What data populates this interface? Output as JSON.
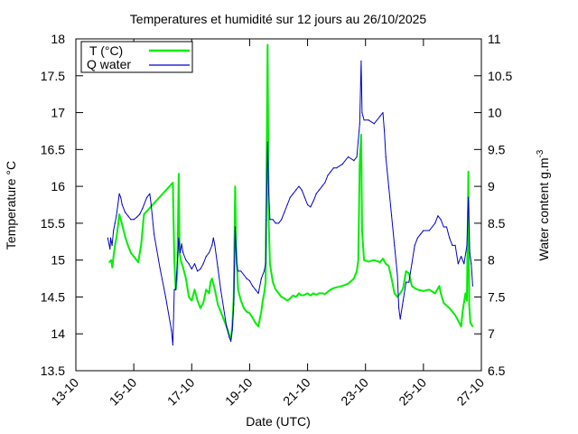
{
  "chart_data": {
    "type": "line",
    "title": "Temperatures et humidité sur 12 jours au 26/10/2025",
    "xlabel": "Date (UTC)",
    "ylabel_left": "Temperature °C",
    "ylabel_right": "Water content g.m",
    "ylabel_right_sup": "-3",
    "x_start_day": 13,
    "x_range_days": [
      0,
      14
    ],
    "x_ticks": [
      "13-10",
      "15-10",
      "17-10",
      "19-10",
      "21-10",
      "23-10",
      "25-10",
      "27-10"
    ],
    "x_tick_days": [
      0,
      2,
      4,
      6,
      8,
      10,
      12,
      14
    ],
    "ylim_left": [
      13.5,
      18
    ],
    "yticks_left": [
      "13.5",
      "14",
      "14.5",
      "15",
      "15.5",
      "16",
      "16.5",
      "17",
      "17.5",
      "18"
    ],
    "ylim_right": [
      6.5,
      11
    ],
    "yticks_right": [
      "6.5",
      "7",
      "7.5",
      "8",
      "8.5",
      "9",
      "9.5",
      "10",
      "10.5",
      "11"
    ],
    "legend_position": "top-left",
    "grid": false,
    "series": [
      {
        "name": "T (°C)",
        "axis": "left",
        "color": "#00ee00",
        "points": [
          [
            1.15,
            14.97
          ],
          [
            1.22,
            15.0
          ],
          [
            1.26,
            14.9
          ],
          [
            1.3,
            15.05
          ],
          [
            1.35,
            15.2
          ],
          [
            1.4,
            15.3
          ],
          [
            1.45,
            15.45
          ],
          [
            1.5,
            15.62
          ],
          [
            1.55,
            15.55
          ],
          [
            1.6,
            15.48
          ],
          [
            1.7,
            15.32
          ],
          [
            1.8,
            15.2
          ],
          [
            1.9,
            15.1
          ],
          [
            2.0,
            15.05
          ],
          [
            2.1,
            15.0
          ],
          [
            2.15,
            14.97
          ],
          [
            2.25,
            15.2
          ],
          [
            2.35,
            15.62
          ],
          [
            3.35,
            16.05
          ],
          [
            3.4,
            15.0
          ],
          [
            3.45,
            14.6
          ],
          [
            3.5,
            14.8
          ],
          [
            3.55,
            16.17
          ],
          [
            3.58,
            15.1
          ],
          [
            3.62,
            15.0
          ],
          [
            3.7,
            14.9
          ],
          [
            3.8,
            14.75
          ],
          [
            3.9,
            14.5
          ],
          [
            4.0,
            14.45
          ],
          [
            4.1,
            14.6
          ],
          [
            4.2,
            14.45
          ],
          [
            4.3,
            14.35
          ],
          [
            4.4,
            14.42
          ],
          [
            4.5,
            14.6
          ],
          [
            4.6,
            14.55
          ],
          [
            4.65,
            14.7
          ],
          [
            4.7,
            14.75
          ],
          [
            4.8,
            14.6
          ],
          [
            4.9,
            14.4
          ],
          [
            5.0,
            14.3
          ],
          [
            5.1,
            14.2
          ],
          [
            5.2,
            14.1
          ],
          [
            5.3,
            13.98
          ],
          [
            5.35,
            13.92
          ],
          [
            5.4,
            14.1
          ],
          [
            5.45,
            14.5
          ],
          [
            5.5,
            16.0
          ],
          [
            5.53,
            15.2
          ],
          [
            5.6,
            14.6
          ],
          [
            5.7,
            14.45
          ],
          [
            5.8,
            14.35
          ],
          [
            5.9,
            14.3
          ],
          [
            6.0,
            14.28
          ],
          [
            6.1,
            14.22
          ],
          [
            6.2,
            14.15
          ],
          [
            6.3,
            14.1
          ],
          [
            6.4,
            14.3
          ],
          [
            6.45,
            14.45
          ],
          [
            6.5,
            14.55
          ],
          [
            6.55,
            14.7
          ],
          [
            6.62,
            17.92
          ],
          [
            6.66,
            15.5
          ],
          [
            6.7,
            14.95
          ],
          [
            6.8,
            14.7
          ],
          [
            6.9,
            14.6
          ],
          [
            7.0,
            14.55
          ],
          [
            7.1,
            14.5
          ],
          [
            7.2,
            14.48
          ],
          [
            7.3,
            14.45
          ],
          [
            7.4,
            14.48
          ],
          [
            7.5,
            14.52
          ],
          [
            7.6,
            14.5
          ],
          [
            7.7,
            14.55
          ],
          [
            7.8,
            14.52
          ],
          [
            7.9,
            14.53
          ],
          [
            8.0,
            14.55
          ],
          [
            8.1,
            14.52
          ],
          [
            8.2,
            14.55
          ],
          [
            8.3,
            14.53
          ],
          [
            8.4,
            14.55
          ],
          [
            8.5,
            14.55
          ],
          [
            8.6,
            14.54
          ],
          [
            8.7,
            14.57
          ],
          [
            8.8,
            14.6
          ],
          [
            8.9,
            14.62
          ],
          [
            9.0,
            14.63
          ],
          [
            9.2,
            14.65
          ],
          [
            9.4,
            14.68
          ],
          [
            9.6,
            14.75
          ],
          [
            9.7,
            14.85
          ],
          [
            9.75,
            15.0
          ],
          [
            9.8,
            16.3
          ],
          [
            9.85,
            16.7
          ],
          [
            9.88,
            15.4
          ],
          [
            9.95,
            15.0
          ],
          [
            10.1,
            14.98
          ],
          [
            10.3,
            15.0
          ],
          [
            10.5,
            14.97
          ],
          [
            10.6,
            15.02
          ],
          [
            10.7,
            14.95
          ],
          [
            10.8,
            14.92
          ],
          [
            10.9,
            14.75
          ],
          [
            11.0,
            14.55
          ],
          [
            11.1,
            14.5
          ],
          [
            11.2,
            14.55
          ],
          [
            11.3,
            14.62
          ],
          [
            11.4,
            14.85
          ],
          [
            11.5,
            14.82
          ],
          [
            11.6,
            14.65
          ],
          [
            11.7,
            14.62
          ],
          [
            11.8,
            14.6
          ],
          [
            12.0,
            14.58
          ],
          [
            12.2,
            14.6
          ],
          [
            12.4,
            14.55
          ],
          [
            12.55,
            14.65
          ],
          [
            12.6,
            14.55
          ],
          [
            12.7,
            14.42
          ],
          [
            12.8,
            14.38
          ],
          [
            12.9,
            14.35
          ],
          [
            13.0,
            14.3
          ],
          [
            13.1,
            14.25
          ],
          [
            13.2,
            14.18
          ],
          [
            13.3,
            14.1
          ],
          [
            13.35,
            14.3
          ],
          [
            13.45,
            14.55
          ],
          [
            13.5,
            14.45
          ],
          [
            13.55,
            16.2
          ],
          [
            13.58,
            14.4
          ],
          [
            13.62,
            14.15
          ],
          [
            13.7,
            14.1
          ]
        ]
      },
      {
        "name": "Q water",
        "axis": "right",
        "color": "#0000cc",
        "points": [
          [
            1.1,
            8.3
          ],
          [
            1.18,
            8.15
          ],
          [
            1.2,
            8.3
          ],
          [
            1.25,
            8.2
          ],
          [
            1.3,
            8.4
          ],
          [
            1.35,
            8.5
          ],
          [
            1.4,
            8.6
          ],
          [
            1.45,
            8.75
          ],
          [
            1.5,
            8.9
          ],
          [
            1.55,
            8.85
          ],
          [
            1.6,
            8.75
          ],
          [
            1.7,
            8.65
          ],
          [
            1.8,
            8.6
          ],
          [
            1.9,
            8.55
          ],
          [
            2.0,
            8.55
          ],
          [
            2.1,
            8.58
          ],
          [
            2.2,
            8.62
          ],
          [
            2.3,
            8.7
          ],
          [
            2.45,
            8.85
          ],
          [
            2.55,
            8.9
          ],
          [
            2.6,
            8.75
          ],
          [
            2.7,
            8.35
          ],
          [
            2.9,
            7.9
          ],
          [
            3.1,
            7.5
          ],
          [
            3.3,
            7.05
          ],
          [
            3.35,
            6.85
          ],
          [
            3.4,
            7.6
          ],
          [
            3.45,
            7.6
          ],
          [
            3.55,
            8.3
          ],
          [
            3.6,
            8.1
          ],
          [
            3.65,
            8.22
          ],
          [
            3.7,
            8.1
          ],
          [
            3.8,
            8.0
          ],
          [
            3.9,
            7.95
          ],
          [
            4.0,
            7.88
          ],
          [
            4.1,
            7.95
          ],
          [
            4.2,
            7.85
          ],
          [
            4.3,
            7.88
          ],
          [
            4.4,
            7.95
          ],
          [
            4.5,
            8.05
          ],
          [
            4.6,
            8.1
          ],
          [
            4.7,
            8.2
          ],
          [
            4.75,
            8.3
          ],
          [
            4.8,
            8.2
          ],
          [
            4.9,
            7.9
          ],
          [
            5.0,
            7.6
          ],
          [
            5.1,
            7.35
          ],
          [
            5.2,
            7.1
          ],
          [
            5.3,
            6.95
          ],
          [
            5.35,
            6.9
          ],
          [
            5.4,
            7.05
          ],
          [
            5.45,
            7.4
          ],
          [
            5.5,
            8.45
          ],
          [
            5.55,
            7.95
          ],
          [
            5.6,
            7.85
          ],
          [
            5.7,
            7.85
          ],
          [
            5.8,
            7.8
          ],
          [
            5.9,
            7.75
          ],
          [
            6.0,
            7.72
          ],
          [
            6.1,
            7.65
          ],
          [
            6.2,
            7.6
          ],
          [
            6.3,
            7.55
          ],
          [
            6.4,
            7.75
          ],
          [
            6.5,
            7.85
          ],
          [
            6.55,
            7.95
          ],
          [
            6.62,
            9.6
          ],
          [
            6.66,
            8.9
          ],
          [
            6.7,
            8.55
          ],
          [
            6.8,
            8.55
          ],
          [
            6.9,
            8.5
          ],
          [
            7.0,
            8.5
          ],
          [
            7.1,
            8.55
          ],
          [
            7.2,
            8.65
          ],
          [
            7.3,
            8.75
          ],
          [
            7.4,
            8.85
          ],
          [
            7.5,
            8.9
          ],
          [
            7.6,
            8.95
          ],
          [
            7.7,
            9.0
          ],
          [
            7.8,
            8.95
          ],
          [
            7.9,
            8.85
          ],
          [
            8.0,
            8.75
          ],
          [
            8.1,
            8.72
          ],
          [
            8.2,
            8.8
          ],
          [
            8.3,
            8.9
          ],
          [
            8.4,
            8.95
          ],
          [
            8.5,
            9.0
          ],
          [
            8.6,
            9.05
          ],
          [
            8.7,
            9.15
          ],
          [
            8.8,
            9.2
          ],
          [
            8.9,
            9.25
          ],
          [
            9.0,
            9.25
          ],
          [
            9.2,
            9.3
          ],
          [
            9.4,
            9.4
          ],
          [
            9.6,
            9.35
          ],
          [
            9.7,
            9.4
          ],
          [
            9.8,
            9.85
          ],
          [
            9.85,
            10.7
          ],
          [
            9.88,
            10.0
          ],
          [
            9.95,
            9.9
          ],
          [
            10.1,
            9.9
          ],
          [
            10.3,
            9.85
          ],
          [
            10.5,
            9.95
          ],
          [
            10.6,
            10.0
          ],
          [
            10.65,
            9.75
          ],
          [
            10.7,
            9.4
          ],
          [
            10.8,
            9.0
          ],
          [
            10.9,
            8.6
          ],
          [
            11.0,
            8.2
          ],
          [
            11.1,
            7.8
          ],
          [
            11.15,
            7.35
          ],
          [
            11.2,
            7.2
          ],
          [
            11.3,
            7.45
          ],
          [
            11.4,
            7.7
          ],
          [
            11.5,
            7.7
          ],
          [
            11.6,
            7.95
          ],
          [
            11.7,
            8.2
          ],
          [
            11.8,
            8.3
          ],
          [
            11.9,
            8.35
          ],
          [
            12.0,
            8.4
          ],
          [
            12.2,
            8.4
          ],
          [
            12.4,
            8.5
          ],
          [
            12.5,
            8.6
          ],
          [
            12.6,
            8.55
          ],
          [
            12.7,
            8.45
          ],
          [
            12.8,
            8.45
          ],
          [
            12.9,
            8.3
          ],
          [
            13.0,
            8.2
          ],
          [
            13.1,
            8.2
          ],
          [
            13.2,
            7.95
          ],
          [
            13.3,
            8.05
          ],
          [
            13.4,
            7.95
          ],
          [
            13.5,
            8.2
          ],
          [
            13.55,
            8.85
          ],
          [
            13.6,
            8.1
          ],
          [
            13.65,
            7.95
          ],
          [
            13.7,
            7.65
          ]
        ]
      }
    ]
  }
}
